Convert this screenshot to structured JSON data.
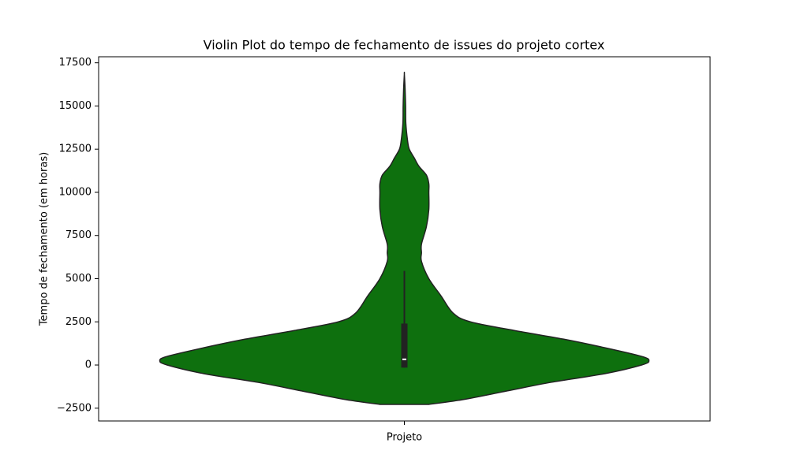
{
  "chart_data": {
    "type": "violin",
    "title": "Violin Plot do tempo de fechamento de issues do projeto cortex",
    "y_label": "Tempo de fechamento (em horas)",
    "categories": [
      "Projeto"
    ],
    "color": "#0e700e",
    "violin": {
      "y": [
        -2280,
        -2000,
        -1500,
        -1000,
        -500,
        0,
        250,
        500,
        1000,
        1500,
        2000,
        2500,
        3000,
        4000,
        5000,
        6000,
        6500,
        7000,
        8000,
        9000,
        10000,
        10500,
        11000,
        11500,
        12000,
        12500,
        13000,
        14000,
        15000,
        16000,
        16850
      ],
      "width": [
        0.1,
        0.24,
        0.42,
        0.6,
        0.82,
        0.97,
        1,
        0.97,
        0.82,
        0.65,
        0.45,
        0.27,
        0.2,
        0.15,
        0.1,
        0.07,
        0.07,
        0.07,
        0.09,
        0.1,
        0.1,
        0.1,
        0.09,
        0.06,
        0.04,
        0.02,
        0.013,
        0.006,
        0.005,
        0.003,
        0
      ]
    },
    "box": {
      "whisker_low": -150,
      "q1": -150,
      "median": 330,
      "q3": 2400,
      "whisker_high": 5450
    },
    "ylim": [
      -3240,
      17850
    ],
    "yticks": [
      {
        "value": -2500,
        "label": "−2500"
      },
      0,
      2500,
      5000,
      7500,
      10000,
      12500,
      15000,
      17500
    ]
  }
}
